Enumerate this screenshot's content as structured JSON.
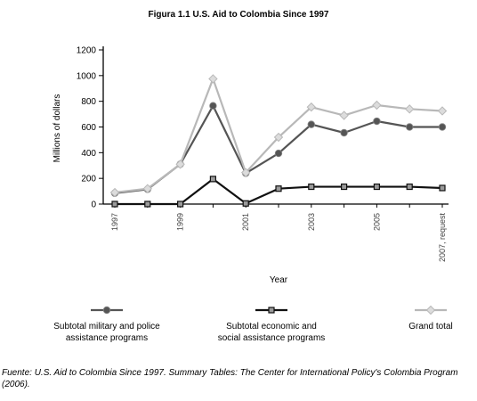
{
  "chart_data": {
    "type": "line",
    "title": "Figura 1.1 U.S. Aid to Colombia Since 1997",
    "xlabel": "Year",
    "ylabel": "Millions of dollars",
    "ylim": [
      0,
      1200
    ],
    "yticks": [
      "0",
      "200",
      "400",
      "600",
      "800",
      "1000",
      "1200"
    ],
    "x": [
      "1997",
      "1998",
      "1999",
      "2000",
      "2001",
      "2002",
      "2003",
      "2004",
      "2005",
      "2006",
      "2007, request"
    ],
    "xtick_labels": [
      "1997",
      "1999",
      "2001",
      "2003",
      "2005",
      "2007, request"
    ],
    "grid": false,
    "legend_position": "bottom",
    "series": [
      {
        "name": "Subtotal military and police assistance programs",
        "color": "#555555",
        "marker": "circle",
        "values": [
          85,
          115,
          310,
          765,
          240,
          395,
          620,
          555,
          645,
          600,
          600
        ]
      },
      {
        "name": "Subtotal economic and social assistance programs",
        "color": "#111111",
        "marker": "square",
        "values": [
          0,
          0,
          0,
          195,
          5,
          120,
          135,
          135,
          135,
          135,
          125
        ]
      },
      {
        "name": "Grand total",
        "color": "#b8b8b8",
        "marker": "diamond",
        "values": [
          90,
          120,
          310,
          975,
          245,
          520,
          755,
          690,
          770,
          740,
          725
        ]
      }
    ]
  },
  "source_note": "Fuente: U.S. Aid to Colombia Since 1997. Summary Tables: The Center for International Policy's Colombia Program (2006)."
}
